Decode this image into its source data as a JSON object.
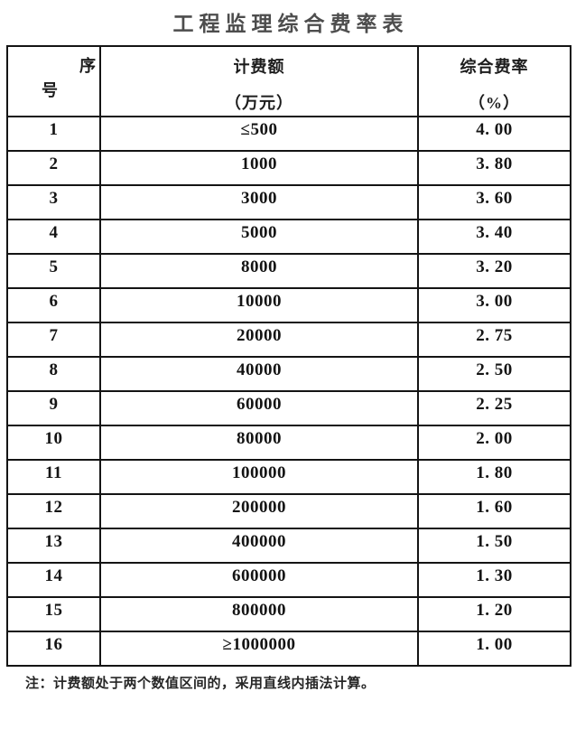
{
  "title": "工程监理综合费率表",
  "table": {
    "headers": {
      "serial_line1": "序",
      "serial_line2": "号",
      "amount_line1": "计费额",
      "amount_line2": "（万元）",
      "rate_line1": "综合费率",
      "rate_line2": "（%）"
    },
    "rows": [
      {
        "no": "1",
        "amount": "≤500",
        "rate": "4. 00"
      },
      {
        "no": "2",
        "amount": "1000",
        "rate": "3. 80"
      },
      {
        "no": "3",
        "amount": "3000",
        "rate": "3. 60"
      },
      {
        "no": "4",
        "amount": "5000",
        "rate": "3. 40"
      },
      {
        "no": "5",
        "amount": "8000",
        "rate": "3. 20"
      },
      {
        "no": "6",
        "amount": "10000",
        "rate": "3. 00"
      },
      {
        "no": "7",
        "amount": "20000",
        "rate": "2. 75"
      },
      {
        "no": "8",
        "amount": "40000",
        "rate": "2. 50"
      },
      {
        "no": "9",
        "amount": "60000",
        "rate": "2. 25"
      },
      {
        "no": "10",
        "amount": "80000",
        "rate": "2. 00"
      },
      {
        "no": "11",
        "amount": "100000",
        "rate": "1. 80"
      },
      {
        "no": "12",
        "amount": "200000",
        "rate": "1. 60"
      },
      {
        "no": "13",
        "amount": "400000",
        "rate": "1. 50"
      },
      {
        "no": "14",
        "amount": "600000",
        "rate": "1. 30"
      },
      {
        "no": "15",
        "amount": "800000",
        "rate": "1. 20"
      },
      {
        "no": "16",
        "amount": "≥1000000",
        "rate": "1. 00"
      }
    ]
  },
  "note": "注：计费额处于两个数值区间的，采用直线内插法计算。",
  "colors": {
    "border": "#141414",
    "title_text": "#4d4d4d",
    "body_text": "#1c1c1c",
    "background": "#ffffff"
  }
}
